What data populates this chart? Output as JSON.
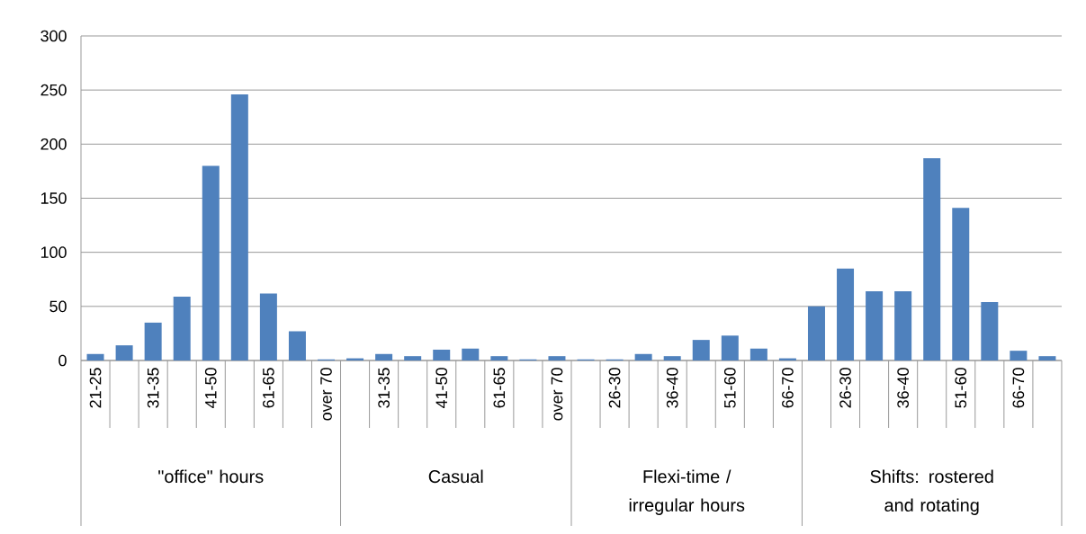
{
  "chart_data": {
    "type": "bar",
    "categories": [
      "21-25",
      null,
      "31-35",
      null,
      "41-50",
      null,
      "61-65",
      null,
      "over 70",
      null,
      "31-35",
      null,
      "41-50",
      null,
      "61-65",
      null,
      "over 70",
      null,
      "26-30",
      null,
      "36-40",
      null,
      "51-60",
      null,
      "66-70",
      null,
      "26-30",
      null,
      "36-40",
      null,
      "51-60",
      null,
      "66-70",
      null
    ],
    "values": [
      6,
      14,
      35,
      59,
      180,
      246,
      62,
      27,
      1,
      2,
      6,
      4,
      10,
      11,
      4,
      1,
      4,
      1,
      1,
      6,
      4,
      19,
      23,
      11,
      2,
      50,
      85,
      64,
      64,
      187,
      141,
      54,
      9,
      4
    ],
    "color": "#4f81bd",
    "ylim": [
      0,
      300
    ],
    "yticks": [
      0,
      50,
      100,
      150,
      200,
      250,
      300
    ],
    "grid": "y",
    "annotations": [
      "\"office\" hours",
      "Casual",
      "Flexi-time / irregular hours",
      "Shifts: rostered and rotating"
    ]
  }
}
